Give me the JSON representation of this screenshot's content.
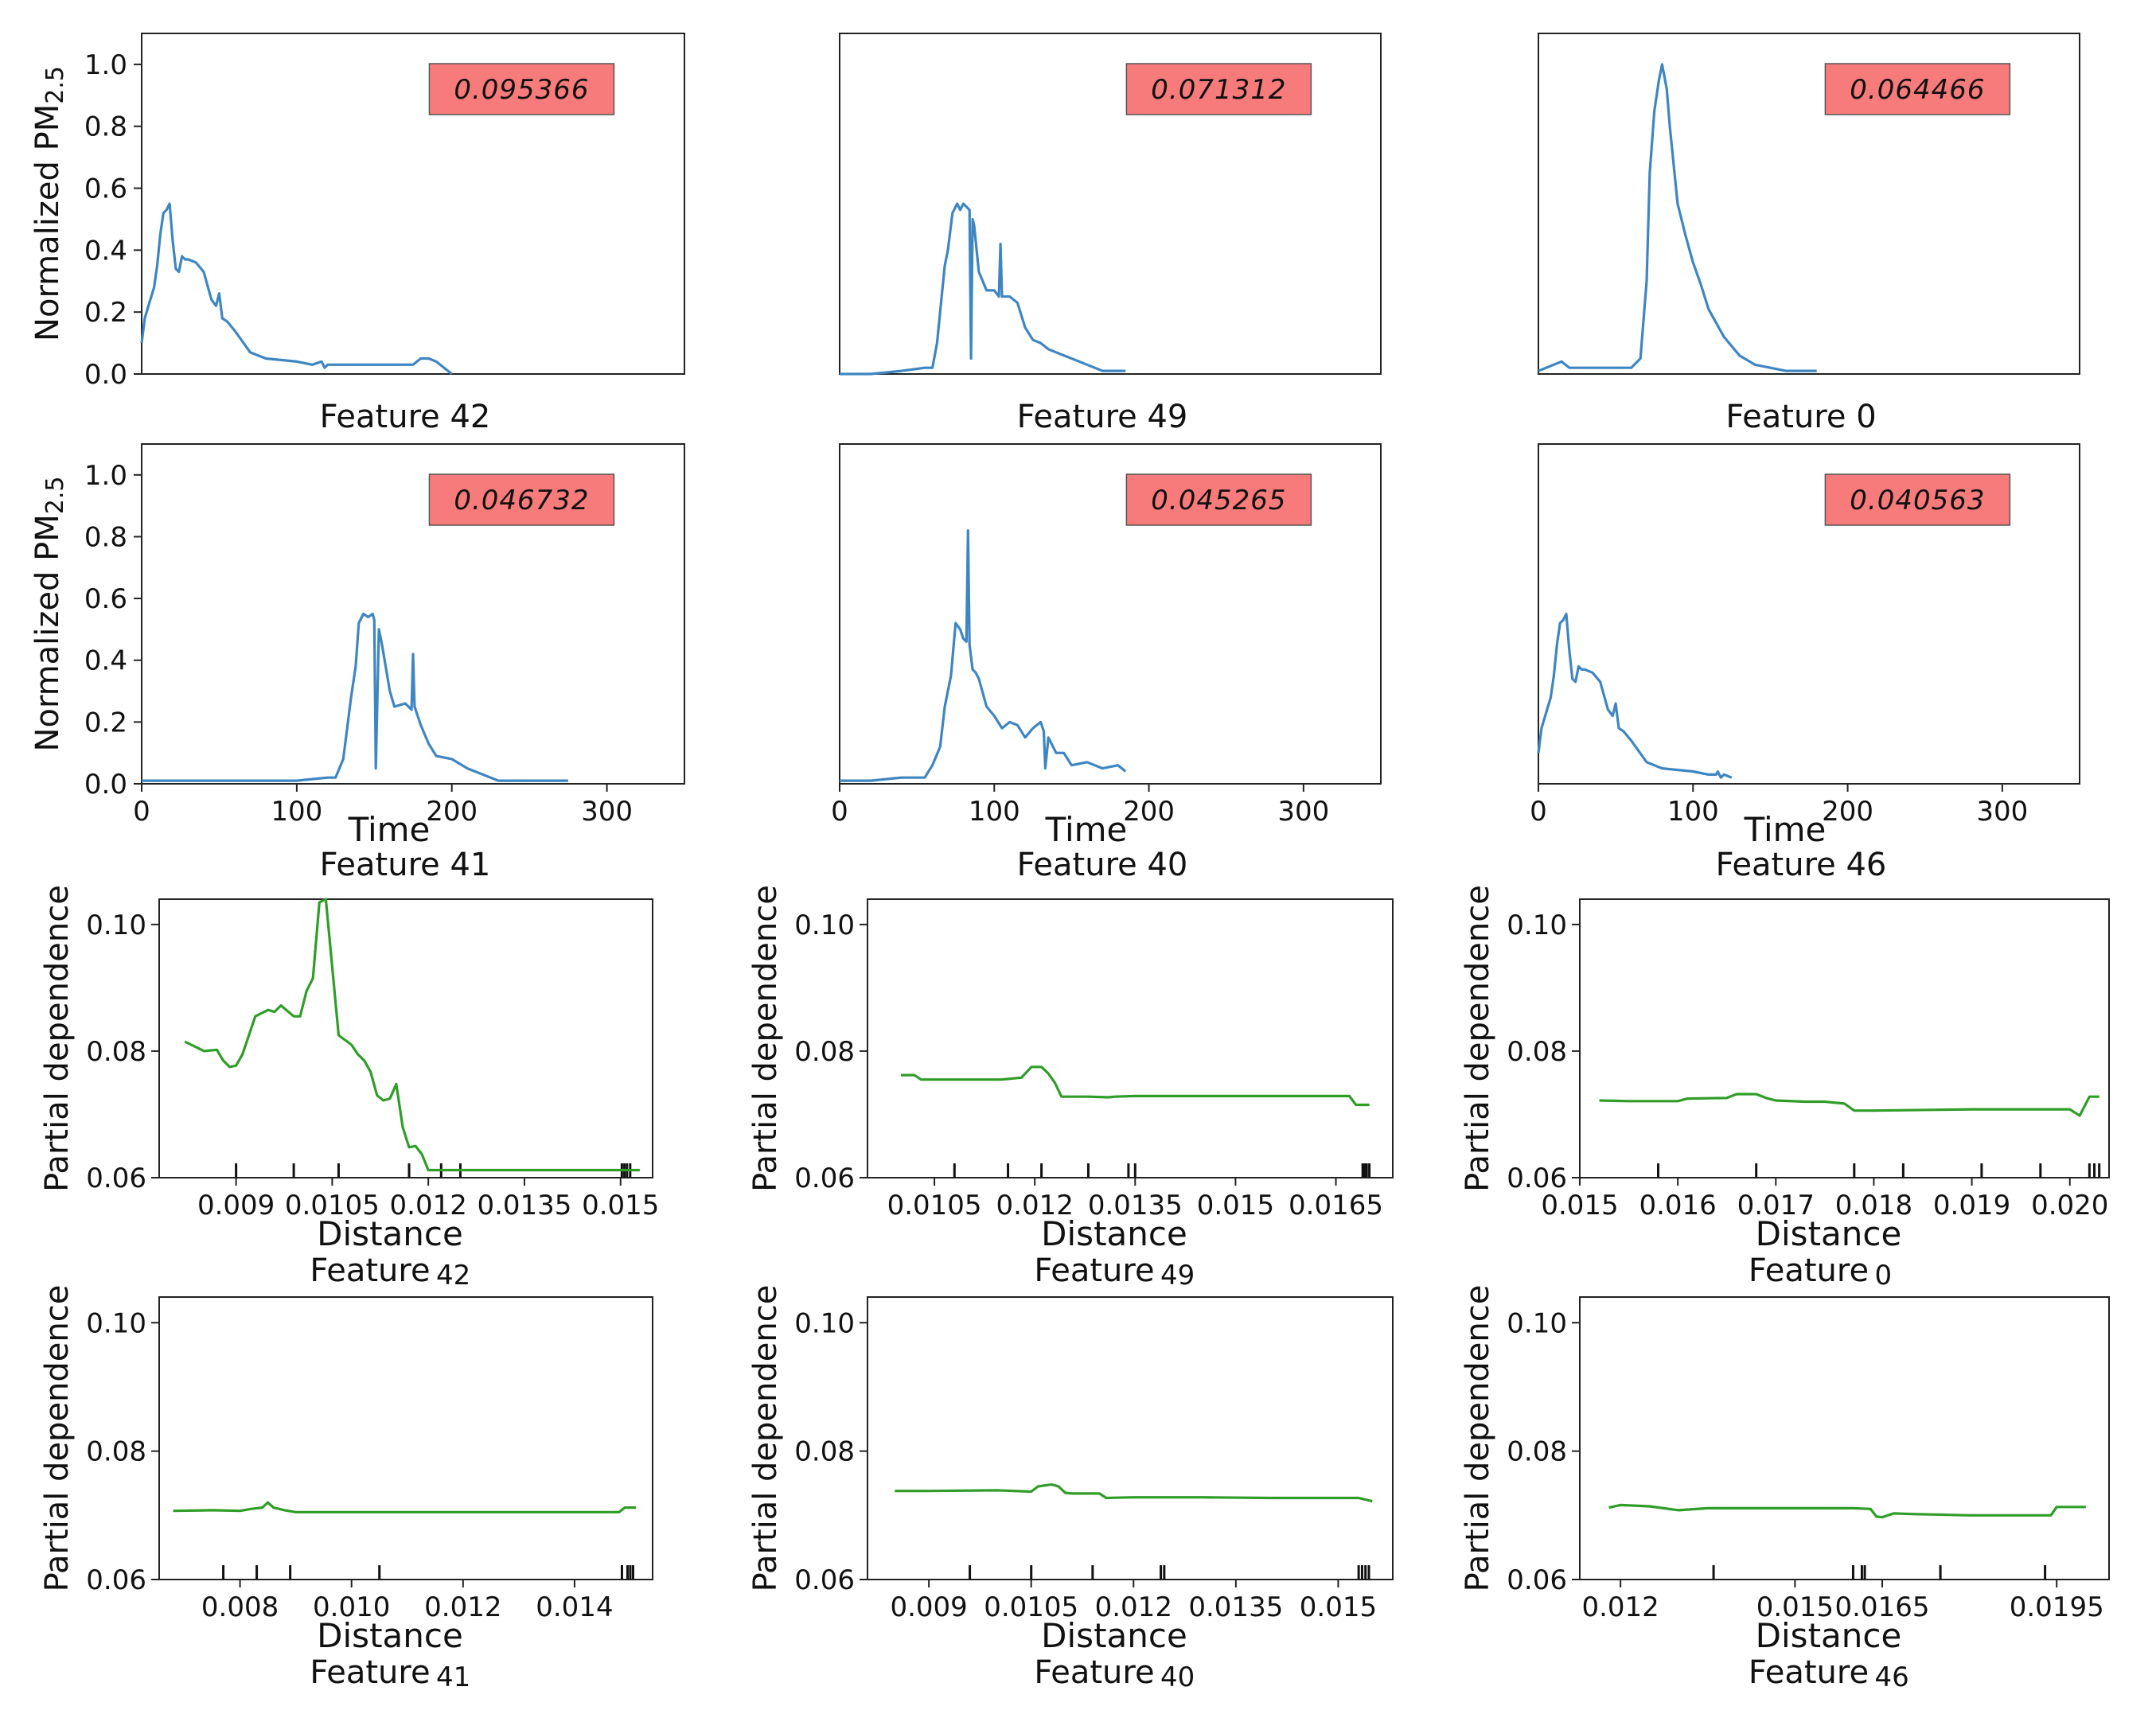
{
  "chart_data": [
    {
      "id": "ts42",
      "type": "line",
      "ylabel": "Normalized PM2.5",
      "ylabel_main": "Normalized PM",
      "ylabel_sub": "2.5",
      "feature": "Feature 42",
      "badge": "0.095366",
      "xlim": [
        0,
        350
      ],
      "ylim": [
        0,
        1.1
      ],
      "yticks": [
        "0.0",
        "0.2",
        "0.4",
        "0.6",
        "0.8",
        "1.0"
      ],
      "xticks": [],
      "x": [
        0,
        2,
        5,
        8,
        10,
        12,
        14,
        16,
        18,
        20,
        22,
        24,
        26,
        28,
        30,
        35,
        40,
        45,
        48,
        50,
        52,
        55,
        60,
        70,
        80,
        100,
        110,
        116,
        118,
        120,
        125,
        130,
        150,
        175,
        180,
        185,
        190,
        200
      ],
      "y": [
        0.1,
        0.18,
        0.23,
        0.28,
        0.35,
        0.45,
        0.52,
        0.53,
        0.55,
        0.43,
        0.34,
        0.33,
        0.38,
        0.37,
        0.37,
        0.36,
        0.33,
        0.24,
        0.22,
        0.26,
        0.18,
        0.17,
        0.14,
        0.07,
        0.05,
        0.04,
        0.03,
        0.04,
        0.02,
        0.03,
        0.03,
        0.03,
        0.03,
        0.03,
        0.05,
        0.05,
        0.04,
        0.0
      ]
    },
    {
      "id": "ts49",
      "type": "line",
      "ylabel": "",
      "feature": "Feature 49",
      "badge": "0.071312",
      "xlim": [
        0,
        350
      ],
      "ylim": [
        0,
        1.1
      ],
      "yticks": [],
      "xticks": [],
      "x": [
        0,
        20,
        40,
        55,
        60,
        63,
        66,
        68,
        70,
        73,
        76,
        78,
        80,
        82,
        84,
        85,
        86,
        87,
        90,
        95,
        100,
        103,
        104,
        105,
        110,
        115,
        120,
        125,
        130,
        135,
        140,
        150,
        160,
        170,
        180,
        185
      ],
      "y": [
        0.0,
        0.0,
        0.01,
        0.02,
        0.02,
        0.1,
        0.25,
        0.35,
        0.4,
        0.52,
        0.55,
        0.53,
        0.55,
        0.54,
        0.53,
        0.05,
        0.5,
        0.48,
        0.33,
        0.27,
        0.27,
        0.25,
        0.42,
        0.25,
        0.25,
        0.23,
        0.15,
        0.11,
        0.1,
        0.08,
        0.07,
        0.05,
        0.03,
        0.01,
        0.01,
        0.01
      ]
    },
    {
      "id": "ts0",
      "type": "line",
      "ylabel": "",
      "feature": "Feature 0",
      "badge": "0.064466",
      "xlim": [
        0,
        350
      ],
      "ylim": [
        0,
        1.1
      ],
      "yticks": [],
      "xticks": [],
      "x": [
        0,
        10,
        15,
        20,
        30,
        50,
        60,
        66,
        70,
        72,
        75,
        78,
        80,
        83,
        85,
        90,
        95,
        100,
        105,
        110,
        120,
        130,
        140,
        150,
        160,
        170,
        180
      ],
      "y": [
        0.01,
        0.03,
        0.04,
        0.02,
        0.02,
        0.02,
        0.02,
        0.05,
        0.3,
        0.65,
        0.85,
        0.95,
        1.0,
        0.92,
        0.8,
        0.55,
        0.45,
        0.36,
        0.29,
        0.21,
        0.12,
        0.06,
        0.03,
        0.02,
        0.01,
        0.01,
        0.01
      ]
    },
    {
      "id": "ts41",
      "type": "line",
      "ylabel": "Normalized PM2.5",
      "ylabel_main": "Normalized PM",
      "ylabel_sub": "2.5",
      "feature": "Feature 41",
      "xlabel": "Time",
      "badge": "0.046732",
      "xlim": [
        0,
        350
      ],
      "ylim": [
        0,
        1.1
      ],
      "yticks": [
        "0.0",
        "0.2",
        "0.4",
        "0.6",
        "0.8",
        "1.0"
      ],
      "xticks": [
        "0",
        "100",
        "200",
        "300"
      ],
      "x": [
        0,
        50,
        100,
        120,
        125,
        130,
        133,
        135,
        138,
        140,
        143,
        146,
        149,
        150,
        151,
        153,
        155,
        158,
        160,
        163,
        170,
        174,
        175,
        176,
        178,
        180,
        185,
        190,
        200,
        210,
        220,
        230,
        250,
        270,
        275
      ],
      "y": [
        0.01,
        0.01,
        0.01,
        0.02,
        0.02,
        0.08,
        0.2,
        0.28,
        0.38,
        0.52,
        0.55,
        0.54,
        0.55,
        0.53,
        0.05,
        0.5,
        0.45,
        0.36,
        0.3,
        0.25,
        0.26,
        0.24,
        0.42,
        0.25,
        0.22,
        0.19,
        0.13,
        0.09,
        0.08,
        0.05,
        0.03,
        0.01,
        0.01,
        0.01,
        0.01
      ]
    },
    {
      "id": "ts40",
      "type": "line",
      "ylabel": "",
      "feature": "Feature 40",
      "xlabel": "Time",
      "badge": "0.045265",
      "xlim": [
        0,
        350
      ],
      "ylim": [
        0,
        1.1
      ],
      "yticks": [],
      "xticks": [
        "0",
        "100",
        "200",
        "300"
      ],
      "x": [
        0,
        20,
        40,
        55,
        60,
        65,
        68,
        72,
        75,
        78,
        80,
        82,
        83,
        84,
        86,
        88,
        90,
        95,
        100,
        105,
        110,
        115,
        120,
        125,
        130,
        132,
        133,
        135,
        140,
        145,
        150,
        160,
        170,
        180,
        185
      ],
      "y": [
        0.01,
        0.01,
        0.02,
        0.02,
        0.06,
        0.12,
        0.25,
        0.35,
        0.52,
        0.5,
        0.47,
        0.46,
        0.82,
        0.45,
        0.37,
        0.36,
        0.34,
        0.25,
        0.22,
        0.18,
        0.2,
        0.19,
        0.15,
        0.18,
        0.2,
        0.17,
        0.05,
        0.15,
        0.1,
        0.1,
        0.06,
        0.07,
        0.05,
        0.06,
        0.04
      ]
    },
    {
      "id": "ts46",
      "type": "line",
      "ylabel": "",
      "feature": "Feature 46",
      "xlabel": "Time",
      "badge": "0.040563",
      "xlim": [
        0,
        350
      ],
      "ylim": [
        0,
        1.1
      ],
      "yticks": [],
      "xticks": [
        "0",
        "100",
        "200",
        "300"
      ],
      "x": [
        0,
        2,
        5,
        8,
        10,
        12,
        14,
        16,
        18,
        20,
        22,
        24,
        26,
        28,
        30,
        35,
        40,
        45,
        48,
        50,
        52,
        55,
        60,
        70,
        80,
        100,
        110,
        115,
        116,
        118,
        120,
        125
      ],
      "y": [
        0.1,
        0.18,
        0.23,
        0.28,
        0.35,
        0.45,
        0.52,
        0.53,
        0.55,
        0.43,
        0.34,
        0.33,
        0.38,
        0.37,
        0.37,
        0.36,
        0.33,
        0.24,
        0.22,
        0.26,
        0.18,
        0.17,
        0.14,
        0.07,
        0.05,
        0.04,
        0.03,
        0.03,
        0.04,
        0.02,
        0.03,
        0.02
      ]
    },
    {
      "id": "pd42",
      "type": "line",
      "ylabel": "Partial dependence",
      "xlabel": "Distance",
      "feature": "Feature",
      "feature_num": "42",
      "xlim": [
        0.0078,
        0.0155
      ],
      "ylim": [
        0.06,
        0.104
      ],
      "yticks": [
        "0.06",
        "0.08",
        "0.10"
      ],
      "xtick_vals": [
        0.009,
        0.0105,
        0.012,
        0.0135,
        0.015
      ],
      "xticks": [
        "0.009",
        "0.0105",
        "0.012",
        "0.0135",
        "0.015"
      ],
      "x": [
        0.0082,
        0.0083,
        0.0085,
        0.0087,
        0.0088,
        0.0089,
        0.009,
        0.0091,
        0.0093,
        0.0095,
        0.0096,
        0.0097,
        0.0099,
        0.01,
        0.0101,
        0.0102,
        0.0103,
        0.0104,
        0.0106,
        0.0108,
        0.0109,
        0.011,
        0.0111,
        0.0112,
        0.0113,
        0.0114,
        0.0115,
        0.0116,
        0.0117,
        0.0118,
        0.0119,
        0.012,
        0.0121,
        0.0125,
        0.013,
        0.0135,
        0.014,
        0.0145,
        0.015,
        0.0153
      ],
      "y": [
        0.0815,
        0.081,
        0.08,
        0.0802,
        0.0785,
        0.0775,
        0.0777,
        0.0795,
        0.0855,
        0.0865,
        0.0862,
        0.0872,
        0.0855,
        0.0855,
        0.0895,
        0.0915,
        0.1035,
        0.104,
        0.0825,
        0.081,
        0.0795,
        0.0785,
        0.0767,
        0.073,
        0.0722,
        0.0725,
        0.0748,
        0.068,
        0.0648,
        0.065,
        0.0637,
        0.0612,
        0.0612,
        0.0612,
        0.0612,
        0.0612,
        0.0612,
        0.0612,
        0.0612,
        0.0612
      ],
      "rug": [
        0.009,
        0.0099,
        0.0106,
        0.0117,
        0.0122,
        0.0125,
        0.01502,
        0.01506,
        0.0151,
        0.01515
      ]
    },
    {
      "id": "pd49",
      "type": "line",
      "ylabel": "Partial dependence",
      "xlabel": "Distance",
      "feature": "Feature",
      "feature_num": "49",
      "xlim": [
        0.0095,
        0.01735
      ],
      "ylim": [
        0.06,
        0.104
      ],
      "yticks": [
        "0.06",
        "0.08",
        "0.10"
      ],
      "xtick_vals": [
        0.0105,
        0.012,
        0.0135,
        0.015,
        0.0165
      ],
      "xticks": [
        "0.0105",
        "0.012",
        "0.0135",
        "0.015",
        "0.0165"
      ],
      "x": [
        0.01,
        0.0102,
        0.0103,
        0.0105,
        0.011,
        0.0115,
        0.0118,
        0.01195,
        0.0121,
        0.0122,
        0.0123,
        0.0124,
        0.0125,
        0.0128,
        0.0131,
        0.0132,
        0.0135,
        0.014,
        0.015,
        0.016,
        0.0167,
        0.0168,
        0.0169,
        0.017
      ],
      "y": [
        0.0762,
        0.0762,
        0.0755,
        0.0755,
        0.0755,
        0.0755,
        0.0758,
        0.0775,
        0.0775,
        0.0765,
        0.075,
        0.0728,
        0.0728,
        0.0728,
        0.0727,
        0.0728,
        0.0729,
        0.0729,
        0.0729,
        0.0729,
        0.0729,
        0.0715,
        0.0715,
        0.0715
      ],
      "rug": [
        0.0108,
        0.0116,
        0.0121,
        0.0128,
        0.0134,
        0.0135,
        0.0169,
        0.01693,
        0.01696,
        0.017
      ]
    },
    {
      "id": "pd0",
      "type": "line",
      "ylabel": "Partial dependence",
      "xlabel": "Distance",
      "feature": "Feature",
      "feature_num": "0",
      "xlim": [
        0.015,
        0.0204
      ],
      "ylim": [
        0.06,
        0.104
      ],
      "yticks": [
        "0.06",
        "0.08",
        "0.10"
      ],
      "xtick_vals": [
        0.015,
        0.016,
        0.017,
        0.018,
        0.019,
        0.02
      ],
      "xticks": [
        "0.015",
        "0.016",
        "0.017",
        "0.018",
        "0.019",
        "0.020"
      ],
      "x": [
        0.0152,
        0.0155,
        0.016,
        0.0161,
        0.0165,
        0.0166,
        0.0168,
        0.0169,
        0.017,
        0.0173,
        0.0175,
        0.0177,
        0.0178,
        0.018,
        0.019,
        0.02,
        0.0201,
        0.0202,
        0.0203
      ],
      "y": [
        0.0722,
        0.0721,
        0.0721,
        0.0725,
        0.0726,
        0.0732,
        0.0732,
        0.0726,
        0.0722,
        0.072,
        0.072,
        0.0717,
        0.0706,
        0.0706,
        0.0708,
        0.0708,
        0.0698,
        0.0728,
        0.0728
      ],
      "rug": [
        0.0158,
        0.0168,
        0.0178,
        0.0183,
        0.0191,
        0.0197,
        0.0202,
        0.02025,
        0.0203
      ]
    },
    {
      "id": "pd41",
      "type": "line",
      "ylabel": "Partial dependence",
      "xlabel": "Distance",
      "feature": "Feature",
      "feature_num": "41",
      "xlim": [
        0.00655,
        0.0154
      ],
      "ylim": [
        0.06,
        0.104
      ],
      "yticks": [
        "0.06",
        "0.08",
        "0.10"
      ],
      "xtick_vals": [
        0.008,
        0.01,
        0.012,
        0.014
      ],
      "xticks": [
        "0.008",
        "0.010",
        "0.012",
        "0.014"
      ],
      "x": [
        0.0068,
        0.0075,
        0.008,
        0.0082,
        0.0083,
        0.0084,
        0.0085,
        0.0086,
        0.0088,
        0.009,
        0.01,
        0.012,
        0.014,
        0.0148,
        0.0149,
        0.015,
        0.0151
      ],
      "y": [
        0.0707,
        0.0708,
        0.0707,
        0.071,
        0.0711,
        0.0712,
        0.072,
        0.0712,
        0.0708,
        0.0705,
        0.0705,
        0.0705,
        0.0705,
        0.0705,
        0.0712,
        0.0712,
        0.0712
      ],
      "rug": [
        0.0077,
        0.0083,
        0.0089,
        0.0105,
        0.01485,
        0.01495,
        0.015,
        0.01505
      ]
    },
    {
      "id": "pd40",
      "type": "line",
      "ylabel": "Partial dependence",
      "xlabel": "Distance",
      "feature": "Feature",
      "feature_num": "40",
      "xlim": [
        0.0081,
        0.0158
      ],
      "ylim": [
        0.06,
        0.104
      ],
      "yticks": [
        "0.06",
        "0.08",
        "0.10"
      ],
      "xtick_vals": [
        0.009,
        0.0105,
        0.012,
        0.0135,
        0.015
      ],
      "xticks": [
        "0.009",
        "0.0105",
        "0.012",
        "0.0135",
        "0.015"
      ],
      "x": [
        0.0085,
        0.009,
        0.01,
        0.0105,
        0.0106,
        0.0108,
        0.0109,
        0.011,
        0.0111,
        0.0115,
        0.0116,
        0.012,
        0.013,
        0.014,
        0.015,
        0.0153,
        0.0155
      ],
      "y": [
        0.0738,
        0.0738,
        0.0739,
        0.0737,
        0.0745,
        0.0748,
        0.0745,
        0.0735,
        0.0734,
        0.0734,
        0.0727,
        0.0728,
        0.0728,
        0.0727,
        0.0727,
        0.0727,
        0.0722
      ],
      "rug": [
        0.0096,
        0.0105,
        0.0114,
        0.0124,
        0.01245,
        0.0153,
        0.01535,
        0.0154,
        0.01545
      ]
    },
    {
      "id": "pd46",
      "type": "line",
      "ylabel": "Partial dependence",
      "xlabel": "Distance",
      "feature": "Feature",
      "feature_num": "46",
      "xlim": [
        0.0113,
        0.0204
      ],
      "ylim": [
        0.06,
        0.104
      ],
      "yticks": [
        "0.06",
        "0.08",
        "0.10"
      ],
      "xtick_vals": [
        0.012,
        0.015,
        0.0165,
        0.0195
      ],
      "xticks": [
        "0.012",
        "0.015",
        "0.0165",
        "0.0195"
      ],
      "x": [
        0.0118,
        0.012,
        0.0125,
        0.013,
        0.0135,
        0.014,
        0.015,
        0.016,
        0.0163,
        0.0164,
        0.0165,
        0.0167,
        0.017,
        0.018,
        0.019,
        0.0194,
        0.0195,
        0.02
      ],
      "y": [
        0.0712,
        0.0716,
        0.0714,
        0.0708,
        0.0711,
        0.0711,
        0.0711,
        0.0711,
        0.071,
        0.0698,
        0.0697,
        0.0703,
        0.0702,
        0.07,
        0.07,
        0.07,
        0.0713,
        0.0713
      ],
      "rug": [
        0.0136,
        0.016,
        0.01615,
        0.0162,
        0.0175,
        0.0193
      ]
    }
  ]
}
